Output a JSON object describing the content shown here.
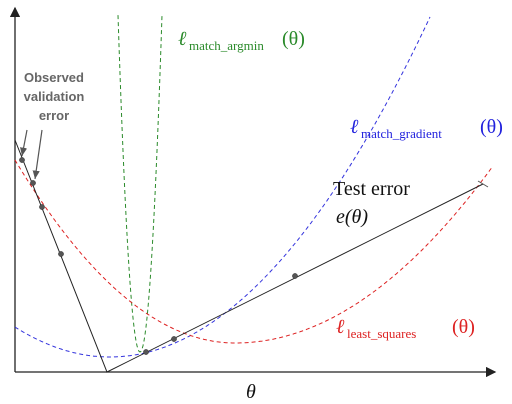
{
  "labels": {
    "observed": [
      "Observed",
      "validation",
      "error"
    ],
    "match_argmin": {
      "symbol": "ℓ",
      "sub": "match_argmin",
      "arg": "(θ)"
    },
    "match_gradient": {
      "symbol": "ℓ",
      "sub": "match_gradient",
      "arg": "(θ)"
    },
    "least_squares": {
      "symbol": "ℓ",
      "sub": "least_squares",
      "arg": "(θ)"
    },
    "test_error": [
      "Test error",
      "e(θ)"
    ],
    "x_axis": "θ"
  }
}
